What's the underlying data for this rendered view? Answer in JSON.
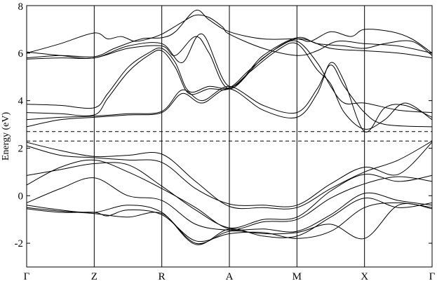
{
  "chart_data": {
    "type": "line",
    "title": "",
    "xlabel": "",
    "ylabel": "Energy (eV)",
    "xlim": [
      0,
      6
    ],
    "ylim": [
      -3,
      8
    ],
    "yticks": [
      -2,
      0,
      2,
      4,
      6,
      8
    ],
    "ytick_labels": [
      "-2",
      "0",
      "2",
      "4",
      "6",
      "8"
    ],
    "kpoints": [
      {
        "label": "Γ",
        "x": 0
      },
      {
        "label": "Z",
        "x": 1
      },
      {
        "label": "R",
        "x": 2
      },
      {
        "label": "A",
        "x": 3
      },
      {
        "label": "M",
        "x": 4
      },
      {
        "label": "X",
        "x": 5
      },
      {
        "label": "Γ",
        "x": 6
      }
    ],
    "reference_lines": [
      {
        "y": 2.3,
        "style": "dashed"
      },
      {
        "y": 2.7,
        "style": "dashed"
      }
    ],
    "series": [
      {
        "values": [
          [
            0,
            6.0
          ],
          [
            0.5,
            6.4
          ],
          [
            1.0,
            6.85
          ],
          [
            1.2,
            6.6
          ],
          [
            1.4,
            6.7
          ],
          [
            1.6,
            6.5
          ],
          [
            1.8,
            6.6
          ],
          [
            2.0,
            6.8
          ],
          [
            2.3,
            7.3
          ],
          [
            2.5,
            7.6
          ],
          [
            2.7,
            7.5
          ],
          [
            2.9,
            7.1
          ],
          [
            3.0,
            6.8
          ],
          [
            3.5,
            6.2
          ],
          [
            4.0,
            5.9
          ],
          [
            4.3,
            6.1
          ],
          [
            4.6,
            6.5
          ],
          [
            5.0,
            6.4
          ],
          [
            5.5,
            6.3
          ],
          [
            6.0,
            6.0
          ]
        ]
      },
      {
        "values": [
          [
            0,
            5.8
          ],
          [
            0.5,
            5.9
          ],
          [
            1.0,
            5.85
          ],
          [
            1.3,
            6.2
          ],
          [
            1.7,
            6.6
          ],
          [
            2.0,
            6.65
          ],
          [
            2.2,
            6.9
          ],
          [
            2.5,
            7.8
          ],
          [
            2.7,
            7.4
          ],
          [
            3.0,
            6.9
          ],
          [
            3.5,
            6.6
          ],
          [
            4.0,
            6.6
          ],
          [
            4.2,
            6.5
          ],
          [
            4.5,
            6.9
          ],
          [
            4.8,
            6.7
          ],
          [
            5.0,
            7.0
          ],
          [
            5.4,
            6.9
          ],
          [
            5.7,
            6.6
          ],
          [
            6.0,
            6.0
          ]
        ]
      },
      {
        "values": [
          [
            0,
            6.05
          ],
          [
            0.5,
            5.9
          ],
          [
            1.0,
            5.8
          ],
          [
            1.5,
            6.3
          ],
          [
            2.0,
            6.4
          ],
          [
            2.3,
            5.6
          ],
          [
            2.6,
            6.8
          ],
          [
            3.0,
            4.6
          ],
          [
            3.5,
            5.9
          ],
          [
            4.0,
            6.65
          ],
          [
            4.3,
            6.4
          ],
          [
            4.7,
            6.3
          ],
          [
            5.0,
            6.2
          ],
          [
            5.3,
            6.4
          ],
          [
            5.7,
            6.5
          ],
          [
            6.0,
            5.9
          ]
        ]
      },
      {
        "values": [
          [
            0,
            5.75
          ],
          [
            0.5,
            5.8
          ],
          [
            1.0,
            5.8
          ],
          [
            1.5,
            6.2
          ],
          [
            2.0,
            6.3
          ],
          [
            2.2,
            5.9
          ],
          [
            2.5,
            6.7
          ],
          [
            2.7,
            6.0
          ],
          [
            3.0,
            4.5
          ],
          [
            3.5,
            5.8
          ],
          [
            4.0,
            6.6
          ],
          [
            4.5,
            6.2
          ],
          [
            5.0,
            6.1
          ],
          [
            5.5,
            6.0
          ],
          [
            6.0,
            5.8
          ]
        ]
      },
      {
        "values": [
          [
            0,
            3.85
          ],
          [
            0.5,
            3.8
          ],
          [
            1.0,
            3.7
          ],
          [
            1.2,
            4.3
          ],
          [
            1.5,
            5.4
          ],
          [
            1.8,
            6.0
          ],
          [
            2.0,
            6.2
          ],
          [
            2.2,
            5.6
          ],
          [
            2.4,
            4.4
          ],
          [
            2.7,
            4.6
          ],
          [
            3.0,
            4.55
          ],
          [
            3.3,
            5.3
          ],
          [
            3.7,
            6.2
          ],
          [
            4.0,
            6.5
          ],
          [
            4.3,
            5.6
          ],
          [
            4.5,
            4.6
          ],
          [
            4.7,
            3.9
          ],
          [
            5.0,
            3.9
          ],
          [
            5.5,
            3.6
          ],
          [
            6.0,
            3.5
          ]
        ]
      },
      {
        "values": [
          [
            0,
            3.5
          ],
          [
            0.5,
            3.45
          ],
          [
            1.0,
            3.4
          ],
          [
            1.2,
            4.1
          ],
          [
            1.5,
            5.2
          ],
          [
            1.8,
            5.9
          ],
          [
            2.0,
            6.1
          ],
          [
            2.2,
            5.4
          ],
          [
            2.4,
            4.3
          ],
          [
            2.7,
            4.5
          ],
          [
            3.0,
            4.5
          ],
          [
            3.3,
            5.2
          ],
          [
            3.7,
            6.1
          ],
          [
            4.0,
            6.4
          ],
          [
            4.3,
            5.3
          ],
          [
            4.5,
            4.7
          ],
          [
            4.7,
            3.5
          ],
          [
            5.0,
            2.8
          ],
          [
            5.3,
            3.2
          ],
          [
            5.6,
            3.9
          ],
          [
            6.0,
            3.2
          ]
        ]
      },
      {
        "values": [
          [
            0,
            3.2
          ],
          [
            0.5,
            3.3
          ],
          [
            1.0,
            3.35
          ],
          [
            1.5,
            3.45
          ],
          [
            2.0,
            3.55
          ],
          [
            2.3,
            4.45
          ],
          [
            2.6,
            4.0
          ],
          [
            3.0,
            4.6
          ],
          [
            3.5,
            3.8
          ],
          [
            4.0,
            3.5
          ],
          [
            4.3,
            4.5
          ],
          [
            4.5,
            5.5
          ],
          [
            4.7,
            4.6
          ],
          [
            5.0,
            3.5
          ],
          [
            5.3,
            3.0
          ],
          [
            6.0,
            2.9
          ]
        ]
      },
      {
        "values": [
          [
            0,
            2.9
          ],
          [
            0.5,
            3.2
          ],
          [
            1.0,
            3.3
          ],
          [
            1.5,
            3.4
          ],
          [
            2.0,
            3.5
          ],
          [
            2.3,
            4.3
          ],
          [
            2.6,
            3.9
          ],
          [
            3.0,
            4.5
          ],
          [
            3.5,
            3.6
          ],
          [
            4.0,
            3.3
          ],
          [
            4.3,
            4.3
          ],
          [
            4.5,
            5.6
          ],
          [
            4.7,
            4.8
          ],
          [
            5.0,
            2.7
          ],
          [
            5.3,
            3.7
          ],
          [
            5.6,
            3.8
          ],
          [
            6.0,
            3.3
          ]
        ]
      },
      {
        "values": [
          [
            0,
            2.25
          ],
          [
            0.5,
            1.9
          ],
          [
            1.0,
            1.65
          ],
          [
            1.5,
            1.7
          ],
          [
            2.0,
            1.75
          ],
          [
            2.5,
            0.6
          ],
          [
            3.0,
            -0.45
          ],
          [
            3.5,
            -0.5
          ],
          [
            4.0,
            -0.5
          ],
          [
            4.5,
            0.3
          ],
          [
            5.0,
            1.0
          ],
          [
            5.5,
            1.5
          ],
          [
            6.0,
            2.3
          ]
        ]
      },
      {
        "values": [
          [
            0,
            2.1
          ],
          [
            0.5,
            1.7
          ],
          [
            1.0,
            1.6
          ],
          [
            1.5,
            1.5
          ],
          [
            2.0,
            1.4
          ],
          [
            2.5,
            0.3
          ],
          [
            3.0,
            -0.35
          ],
          [
            3.5,
            -0.4
          ],
          [
            4.0,
            -0.4
          ],
          [
            4.5,
            0.5
          ],
          [
            5.0,
            1.2
          ],
          [
            5.5,
            0.9
          ],
          [
            6.0,
            2.25
          ]
        ]
      },
      {
        "values": [
          [
            0,
            0.85
          ],
          [
            0.5,
            1.1
          ],
          [
            1.0,
            1.35
          ],
          [
            1.5,
            1.3
          ],
          [
            2.0,
            0.4
          ],
          [
            2.5,
            -0.6
          ],
          [
            3.0,
            -1.35
          ],
          [
            3.5,
            -1.0
          ],
          [
            4.0,
            -0.9
          ],
          [
            4.5,
            0.2
          ],
          [
            5.0,
            0.9
          ],
          [
            5.5,
            0.6
          ],
          [
            6.0,
            0.85
          ]
        ]
      },
      {
        "values": [
          [
            0,
            0.45
          ],
          [
            0.5,
            1.2
          ],
          [
            1.0,
            1.5
          ],
          [
            1.5,
            1.0
          ],
          [
            2.0,
            0.3
          ],
          [
            2.5,
            -0.5
          ],
          [
            3.0,
            -1.4
          ],
          [
            3.5,
            -1.1
          ],
          [
            4.0,
            -1.0
          ],
          [
            4.5,
            -0.1
          ],
          [
            5.0,
            0.5
          ],
          [
            5.5,
            0.8
          ],
          [
            6.0,
            0.6
          ]
        ]
      },
      {
        "values": [
          [
            0,
            -0.3
          ],
          [
            0.5,
            0.3
          ],
          [
            1.0,
            0.75
          ],
          [
            1.5,
            0.0
          ],
          [
            2.0,
            -0.2
          ],
          [
            2.5,
            -1.2
          ],
          [
            3.0,
            -1.45
          ],
          [
            3.5,
            -1.4
          ],
          [
            4.0,
            -1.5
          ],
          [
            4.5,
            -0.8
          ],
          [
            5.0,
            0.1
          ],
          [
            5.5,
            -0.2
          ],
          [
            6.0,
            -0.4
          ]
        ]
      },
      {
        "values": [
          [
            0,
            -0.4
          ],
          [
            0.5,
            -0.6
          ],
          [
            1.0,
            -0.7
          ],
          [
            1.5,
            -0.4
          ],
          [
            2.0,
            -0.7
          ],
          [
            2.5,
            -2.05
          ],
          [
            3.0,
            -1.4
          ],
          [
            3.5,
            -1.7
          ],
          [
            4.0,
            -1.7
          ],
          [
            4.5,
            -0.9
          ],
          [
            5.0,
            -0.1
          ],
          [
            5.5,
            -0.5
          ],
          [
            6.0,
            -0.3
          ]
        ]
      },
      {
        "values": [
          [
            0,
            -0.5
          ],
          [
            0.5,
            -0.65
          ],
          [
            1.0,
            -0.75
          ],
          [
            1.5,
            -0.9
          ],
          [
            2.0,
            -0.75
          ],
          [
            2.5,
            -2.0
          ],
          [
            3.0,
            -1.5
          ],
          [
            3.5,
            -1.6
          ],
          [
            4.0,
            -1.55
          ],
          [
            4.5,
            -1.2
          ],
          [
            5.0,
            -1.8
          ],
          [
            5.5,
            -0.4
          ],
          [
            6.0,
            -0.55
          ]
        ]
      },
      {
        "values": [
          [
            0,
            -0.55
          ],
          [
            0.5,
            -0.7
          ],
          [
            1.0,
            -0.7
          ],
          [
            1.2,
            -0.85
          ],
          [
            1.5,
            -0.6
          ],
          [
            2.0,
            -0.8
          ],
          [
            2.5,
            -1.9
          ],
          [
            3.0,
            -1.6
          ],
          [
            3.5,
            -1.55
          ],
          [
            4.0,
            -1.8
          ],
          [
            4.5,
            -1.5
          ],
          [
            5.0,
            -0.5
          ],
          [
            5.5,
            -0.3
          ],
          [
            6.0,
            -0.5
          ]
        ]
      }
    ]
  }
}
